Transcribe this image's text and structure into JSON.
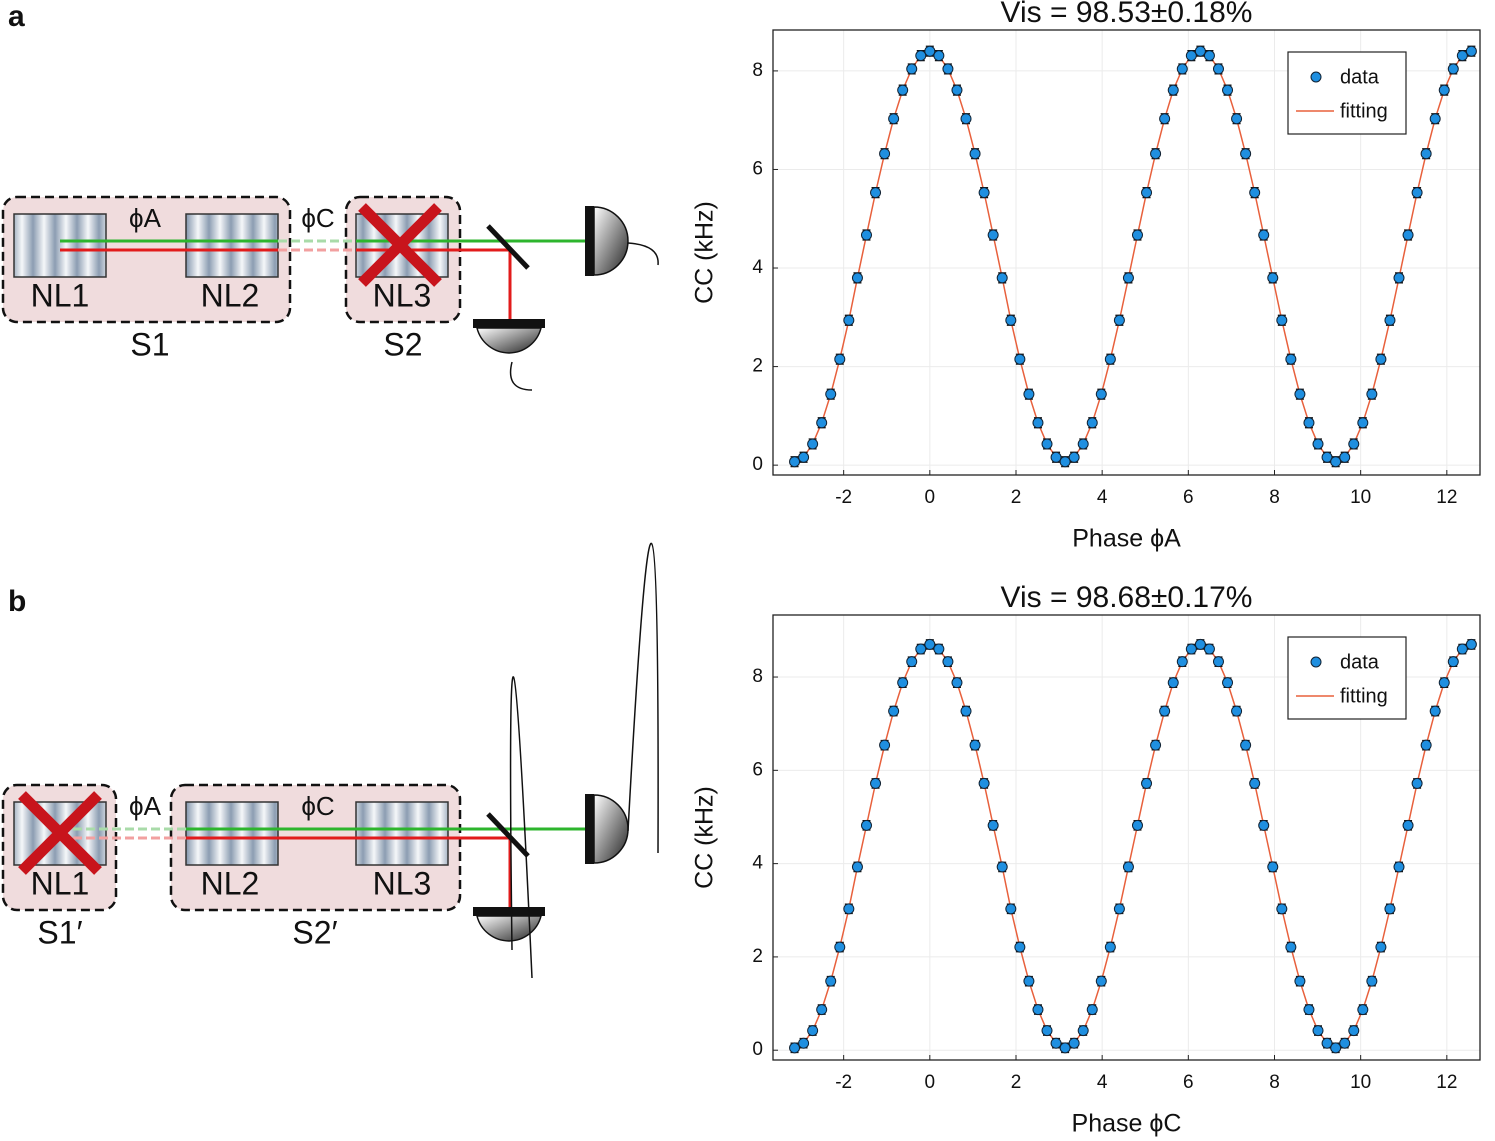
{
  "panels": [
    "a",
    "b"
  ],
  "diagrams": [
    {
      "crystals": [
        "NL1",
        "NL2",
        "NL3"
      ],
      "sources": [
        "S1",
        "S2"
      ],
      "phases": [
        "ϕA",
        "ϕC"
      ]
    },
    {
      "crystals": [
        "NL1",
        "NL2",
        "NL3"
      ],
      "sources": [
        "S1′",
        "S2′"
      ],
      "phases": [
        "ϕA",
        "ϕC"
      ]
    }
  ],
  "chart_data": [
    {
      "type": "scatter",
      "title": "Vis = 98.53±0.18%",
      "x_label": "Phase ϕA",
      "y_label": "CC (kHz)",
      "x": [
        -3.14,
        -2.93,
        -2.72,
        -2.51,
        -2.3,
        -2.09,
        -1.88,
        -1.68,
        -1.47,
        -1.26,
        -1.05,
        -0.84,
        -0.63,
        -0.42,
        -0.21,
        0.0,
        0.21,
        0.42,
        0.63,
        0.84,
        1.05,
        1.26,
        1.47,
        1.68,
        1.88,
        2.09,
        2.3,
        2.51,
        2.72,
        2.93,
        3.14,
        3.35,
        3.56,
        3.77,
        3.98,
        4.19,
        4.4,
        4.61,
        4.82,
        5.03,
        5.24,
        5.45,
        5.65,
        5.86,
        6.07,
        6.28,
        6.49,
        6.7,
        6.91,
        7.12,
        7.33,
        7.54,
        7.75,
        7.96,
        8.17,
        8.38,
        8.59,
        8.8,
        9.01,
        9.22,
        9.42,
        9.63,
        9.84,
        10.05,
        10.26,
        10.47,
        10.68,
        10.89,
        11.1,
        11.31,
        11.52,
        11.73,
        11.94,
        12.15,
        12.36,
        12.57
      ],
      "series": [
        {
          "name": "data",
          "color": "#1f8fe0",
          "values": [
            0.07,
            0.16,
            0.43,
            0.86,
            1.44,
            2.15,
            2.94,
            3.8,
            4.67,
            5.53,
            6.32,
            7.03,
            7.61,
            8.04,
            8.31,
            8.4,
            8.31,
            8.04,
            7.61,
            7.03,
            6.32,
            5.53,
            4.67,
            3.8,
            2.94,
            2.15,
            1.44,
            0.86,
            0.43,
            0.16,
            0.07,
            0.16,
            0.43,
            0.86,
            1.44,
            2.15,
            2.94,
            3.8,
            4.67,
            5.53,
            6.32,
            7.03,
            7.61,
            8.04,
            8.31,
            8.4,
            8.31,
            8.04,
            7.61,
            7.03,
            6.32,
            5.53,
            4.67,
            3.8,
            2.94,
            2.15,
            1.44,
            0.86,
            0.43,
            0.16,
            0.07,
            0.16,
            0.43,
            0.86,
            1.44,
            2.15,
            2.94,
            3.8,
            4.67,
            5.53,
            6.32,
            7.03,
            7.61,
            8.04,
            8.31,
            8.4
          ]
        },
        {
          "name": "fitting",
          "color": "#e8603c",
          "values": [
            0.07,
            0.16,
            0.43,
            0.86,
            1.44,
            2.15,
            2.94,
            3.8,
            4.67,
            5.53,
            6.32,
            7.03,
            7.61,
            8.04,
            8.31,
            8.4,
            8.31,
            8.04,
            7.61,
            7.03,
            6.32,
            5.53,
            4.67,
            3.8,
            2.94,
            2.15,
            1.44,
            0.86,
            0.43,
            0.16,
            0.07,
            0.16,
            0.43,
            0.86,
            1.44,
            2.15,
            2.94,
            3.8,
            4.67,
            5.53,
            6.32,
            7.03,
            7.61,
            8.04,
            8.31,
            8.4,
            8.31,
            8.04,
            7.61,
            7.03,
            6.32,
            5.53,
            4.67,
            3.8,
            2.94,
            2.15,
            1.44,
            0.86,
            0.43,
            0.16,
            0.07,
            0.16,
            0.43,
            0.86,
            1.44,
            2.15,
            2.94,
            3.8,
            4.67,
            5.53,
            6.32,
            7.03,
            7.61,
            8.04,
            8.31,
            8.4
          ]
        }
      ],
      "yerr": 0.1,
      "xlim": [
        -3.64,
        12.77
      ],
      "ylim": [
        -0.2,
        8.83
      ],
      "xticks": [
        -2,
        0,
        2,
        4,
        6,
        8,
        10,
        12
      ],
      "yticks": [
        0,
        2,
        4,
        6,
        8
      ],
      "grid": true,
      "legend": "upper right"
    },
    {
      "type": "scatter",
      "title": "Vis = 98.68±0.17%",
      "x_label": "Phase ϕC",
      "y_label": "CC (kHz)",
      "x": [
        -3.14,
        -2.93,
        -2.72,
        -2.51,
        -2.3,
        -2.09,
        -1.88,
        -1.68,
        -1.47,
        -1.26,
        -1.05,
        -0.84,
        -0.63,
        -0.42,
        -0.21,
        0.0,
        0.21,
        0.42,
        0.63,
        0.84,
        1.05,
        1.26,
        1.47,
        1.68,
        1.88,
        2.09,
        2.3,
        2.51,
        2.72,
        2.93,
        3.14,
        3.35,
        3.56,
        3.77,
        3.98,
        4.19,
        4.4,
        4.61,
        4.82,
        5.03,
        5.24,
        5.45,
        5.65,
        5.86,
        6.07,
        6.28,
        6.49,
        6.7,
        6.91,
        7.12,
        7.33,
        7.54,
        7.75,
        7.96,
        8.17,
        8.38,
        8.59,
        8.8,
        9.01,
        9.22,
        9.42,
        9.63,
        9.84,
        10.05,
        10.26,
        10.47,
        10.68,
        10.89,
        11.1,
        11.31,
        11.52,
        11.73,
        11.94,
        12.15,
        12.36,
        12.57
      ],
      "series": [
        {
          "name": "data",
          "color": "#1f8fe0",
          "values": [
            0.05,
            0.15,
            0.42,
            0.87,
            1.48,
            2.21,
            3.03,
            3.93,
            4.82,
            5.72,
            6.54,
            7.27,
            7.88,
            8.33,
            8.6,
            8.7,
            8.6,
            8.33,
            7.88,
            7.27,
            6.54,
            5.72,
            4.82,
            3.93,
            3.03,
            2.21,
            1.48,
            0.87,
            0.42,
            0.15,
            0.05,
            0.15,
            0.42,
            0.87,
            1.48,
            2.21,
            3.03,
            3.93,
            4.82,
            5.72,
            6.54,
            7.27,
            7.88,
            8.33,
            8.6,
            8.7,
            8.6,
            8.33,
            7.88,
            7.27,
            6.54,
            5.72,
            4.82,
            3.93,
            3.03,
            2.21,
            1.48,
            0.87,
            0.42,
            0.15,
            0.05,
            0.15,
            0.42,
            0.87,
            1.48,
            2.21,
            3.03,
            3.93,
            4.82,
            5.72,
            6.54,
            7.27,
            7.88,
            8.33,
            8.6,
            8.7
          ]
        },
        {
          "name": "fitting",
          "color": "#e8603c",
          "values": [
            0.05,
            0.15,
            0.42,
            0.87,
            1.48,
            2.21,
            3.03,
            3.93,
            4.82,
            5.72,
            6.54,
            7.27,
            7.88,
            8.33,
            8.6,
            8.7,
            8.6,
            8.33,
            7.88,
            7.27,
            6.54,
            5.72,
            4.82,
            3.93,
            3.03,
            2.21,
            1.48,
            0.87,
            0.42,
            0.15,
            0.05,
            0.15,
            0.42,
            0.87,
            1.48,
            2.21,
            3.03,
            3.93,
            4.82,
            5.72,
            6.54,
            7.27,
            7.88,
            8.33,
            8.6,
            8.7,
            8.6,
            8.33,
            7.88,
            7.27,
            6.54,
            5.72,
            4.82,
            3.93,
            3.03,
            2.21,
            1.48,
            0.87,
            0.42,
            0.15,
            0.05,
            0.15,
            0.42,
            0.87,
            1.48,
            2.21,
            3.03,
            3.93,
            4.82,
            5.72,
            6.54,
            7.27,
            7.88,
            8.33,
            8.6,
            8.7
          ]
        }
      ],
      "yerr": 0.1,
      "xlim": [
        -3.64,
        12.77
      ],
      "ylim": [
        -0.21,
        9.33
      ],
      "xticks": [
        -2,
        0,
        2,
        4,
        6,
        8,
        10,
        12
      ],
      "yticks": [
        0,
        2,
        4,
        6,
        8
      ],
      "grid": true,
      "legend": "upper right"
    }
  ]
}
